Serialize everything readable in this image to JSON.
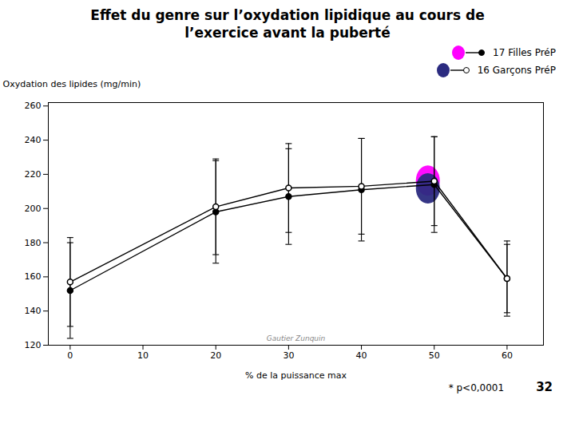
{
  "chart_data": {
    "type": "line",
    "title": "Effet du genre sur l’oxydation lipidique au cours de\nl’exercice avant la puberté",
    "xlabel": "% de la puissance max",
    "ylabel": "Oxydation des lipides (mg/min)",
    "x": [
      0,
      20,
      30,
      40,
      50,
      60
    ],
    "xlim": [
      -3,
      65
    ],
    "xticks": [
      0,
      10,
      20,
      30,
      40,
      50,
      60
    ],
    "ylim": [
      120,
      262
    ],
    "yticks": [
      120,
      140,
      160,
      180,
      200,
      220,
      240,
      260
    ],
    "grid": false,
    "legend": "upper right",
    "series": [
      {
        "name": "17 Filles PréP",
        "color": "#ff00ff",
        "marker": "filled",
        "values": [
          152,
          198,
          207,
          211,
          214,
          159
        ],
        "errors": [
          28,
          30,
          28,
          30,
          28,
          22
        ],
        "significant_x": [
          50
        ]
      },
      {
        "name": "16 Garçons PréP",
        "color": "#2b2b80",
        "marker": "open",
        "values": [
          157,
          201,
          212,
          213,
          216,
          159
        ],
        "errors": [
          26,
          28,
          26,
          28,
          26,
          20
        ],
        "significant_x": [
          50
        ]
      }
    ],
    "annotations": [
      "Gautier Zunquin",
      "* p<0,0001",
      "32"
    ]
  }
}
